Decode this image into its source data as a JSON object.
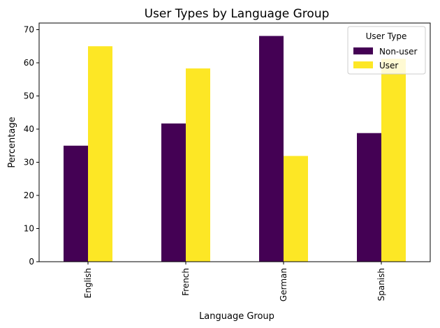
{
  "chart_data": {
    "type": "bar",
    "title": "User Types by Language Group",
    "xlabel": "Language Group",
    "ylabel": "Percentage",
    "categories": [
      "English",
      "French",
      "German",
      "Spanish"
    ],
    "series": [
      {
        "name": "Non-user",
        "color": "#440154",
        "values": [
          35.0,
          41.7,
          68.1,
          38.8
        ]
      },
      {
        "name": "User",
        "color": "#fde725",
        "values": [
          65.0,
          58.3,
          31.9,
          61.2
        ]
      }
    ],
    "ylim": [
      0,
      72
    ],
    "yticks": [
      "0",
      "10",
      "20",
      "30",
      "40",
      "50",
      "60",
      "70"
    ],
    "legend": {
      "title": "User Type",
      "position": "top-right"
    },
    "grid": false
  }
}
